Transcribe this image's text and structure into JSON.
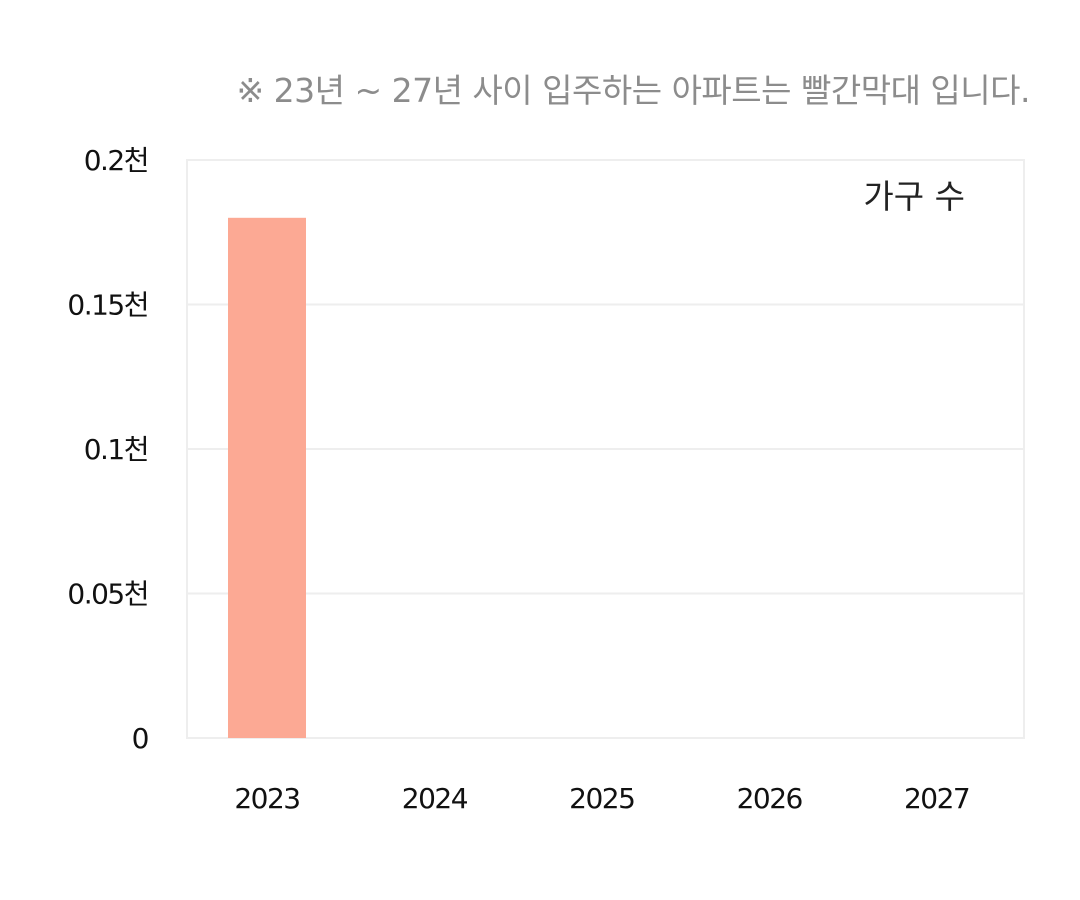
{
  "note": "※ 23년 ~ 27년 사이 입주하는 아파트는 빨간막대 입니다.",
  "chart_data": {
    "type": "bar",
    "categories": [
      "2023",
      "2024",
      "2025",
      "2026",
      "2027"
    ],
    "series": [
      {
        "name": "가구 수",
        "values": [
          0.18,
          0,
          0,
          0,
          0
        ],
        "color": "#fca994"
      }
    ],
    "ylim": [
      0,
      0.2
    ],
    "yticks": [
      0,
      0.05,
      0.1,
      0.15,
      0.2
    ],
    "ytick_labels": [
      "0",
      "0.05천",
      "0.1천",
      "0.15천",
      "0.2천"
    ],
    "legend_position": "top-right",
    "grid": true
  }
}
